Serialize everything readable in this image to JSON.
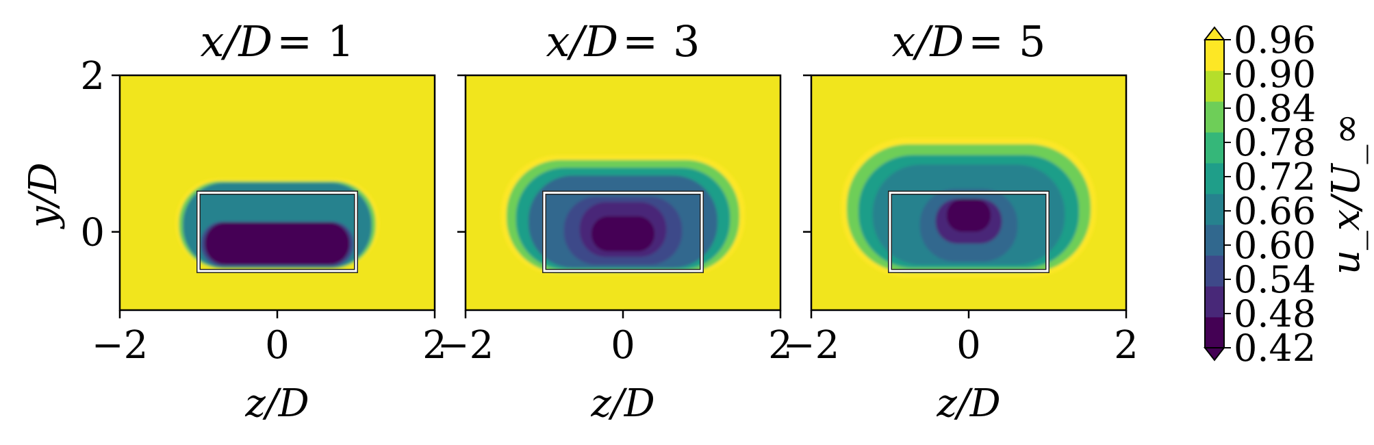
{
  "chart_data": {
    "type": "filled-contour",
    "colormap": "viridis",
    "colorbar": {
      "label": "u_x/U_∞",
      "levels": [
        0.42,
        0.48,
        0.54,
        0.6,
        0.66,
        0.72,
        0.78,
        0.84,
        0.9,
        0.96
      ],
      "tick_labels": [
        "0.96",
        "0.90",
        "0.84",
        "0.78",
        "0.72",
        "0.66",
        "0.60",
        "0.54",
        "0.48",
        "0.42"
      ],
      "extend": "both"
    },
    "xlabel": "z/D",
    "ylabel": "y/D",
    "xlim": [
      -2,
      2
    ],
    "ylim": [
      -1,
      2
    ],
    "x_ticks": [
      "−2",
      "0",
      "2"
    ],
    "y_ticks": [
      "2",
      "0"
    ],
    "body_rectangle": {
      "z": [
        -1,
        1
      ],
      "y": [
        -0.5,
        0.5
      ]
    },
    "panels": [
      {
        "title_var": "x/D",
        "title_eq": "=",
        "title_value": "1",
        "x_value": 1,
        "wake_min": 0.42,
        "wake_regions": [
          {
            "level": 0.96,
            "z": [
              -1.29,
              1.29
            ],
            "y": [
              -0.46,
              0.68
            ]
          },
          {
            "level": 0.84,
            "z": [
              -1.25,
              1.25
            ],
            "y": [
              -0.46,
              0.65
            ]
          },
          {
            "level": 0.66,
            "z": [
              -1.2,
              1.2
            ],
            "y": [
              -0.46,
              0.63
            ]
          },
          {
            "level": 0.54,
            "z": [
              -0.97,
              0.97
            ],
            "y": [
              -0.44,
              0.13
            ]
          },
          {
            "level": 0.42,
            "z": [
              -0.92,
              0.92
            ],
            "y": [
              -0.42,
              0.12
            ]
          }
        ]
      },
      {
        "title_var": "x/D",
        "title_eq": "=",
        "title_value": "3",
        "x_value": 3,
        "wake_min": 0.42,
        "wake_regions": [
          {
            "level": 0.96,
            "z": [
              -1.55,
              1.55
            ],
            "y": [
              -0.55,
              0.98
            ]
          },
          {
            "level": 0.84,
            "z": [
              -1.48,
              1.48
            ],
            "y": [
              -0.52,
              0.92
            ]
          },
          {
            "level": 0.72,
            "z": [
              -1.36,
              1.36
            ],
            "y": [
              -0.48,
              0.82
            ]
          },
          {
            "level": 0.6,
            "z": [
              -1.2,
              1.2
            ],
            "y": [
              -0.46,
              0.72
            ]
          },
          {
            "level": 0.54,
            "z": [
              -0.75,
              0.75
            ],
            "y": [
              -0.42,
              0.45
            ]
          },
          {
            "level": 0.48,
            "z": [
              -0.55,
              0.55
            ],
            "y": [
              -0.32,
              0.38
            ]
          },
          {
            "level": 0.42,
            "z": [
              -0.4,
              0.4
            ],
            "y": [
              -0.25,
              0.2
            ]
          }
        ]
      },
      {
        "title_var": "x/D",
        "title_eq": "=",
        "title_value": "5",
        "x_value": 5,
        "wake_min": 0.42,
        "wake_regions": [
          {
            "level": 0.96,
            "z": [
              -1.62,
              1.62
            ],
            "y": [
              -0.58,
              1.2
            ]
          },
          {
            "level": 0.84,
            "z": [
              -1.55,
              1.55
            ],
            "y": [
              -0.52,
              1.12
            ]
          },
          {
            "level": 0.72,
            "z": [
              -1.4,
              1.4
            ],
            "y": [
              -0.46,
              0.98
            ]
          },
          {
            "level": 0.66,
            "z": [
              -1.22,
              1.22
            ],
            "y": [
              -0.42,
              0.86
            ]
          },
          {
            "level": 0.6,
            "z": [
              -0.62,
              0.62
            ],
            "y": [
              -0.38,
              0.55
            ]
          },
          {
            "level": 0.48,
            "z": [
              -0.42,
              0.42
            ],
            "y": [
              -0.15,
              0.42
            ]
          },
          {
            "level": 0.42,
            "z": [
              -0.28,
              0.28
            ],
            "y": [
              0.0,
              0.42
            ]
          }
        ]
      }
    ]
  },
  "colors": {
    "viridis": [
      "#440154",
      "#482878",
      "#3e4989",
      "#31688e",
      "#26828e",
      "#1f9e89",
      "#35b779",
      "#6ece58",
      "#b5de2b",
      "#fde725"
    ],
    "background_field": "#f1e51d",
    "body_outline": "#ffffff"
  }
}
